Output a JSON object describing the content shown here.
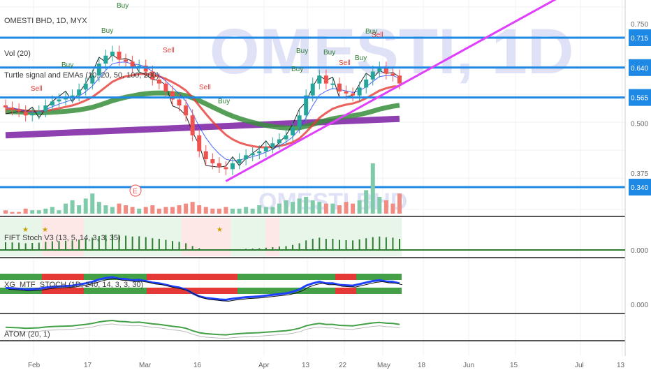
{
  "header": {
    "symbol_line": "OMESTI BHD, 1D, MYX",
    "volume_label": "Vol (20)",
    "indicator_label": "Turtle signal and EMAs (10, 20, 50, 100, 200)"
  },
  "watermark": {
    "main": "OMESTI, 1D",
    "volume": "OMESTI BHD"
  },
  "panels": {
    "stoch_label": "FIFT Stoch V3 (13, 5, 14, 3, 3, 35)",
    "mtf_label": "XG_MTF_STOCH (1D, 240, 14, 3, 3, 30)",
    "atom_label": "ATOM (20, 1)",
    "stoch_zero": "0.000",
    "mtf_zero": "0.000"
  },
  "price_axis": {
    "ticks": [
      "0.750",
      "0.500",
      "0.375"
    ],
    "levels": [
      {
        "label": "0.715",
        "value": 0.715
      },
      {
        "label": "0.640",
        "value": 0.64
      },
      {
        "label": "0.565",
        "value": 0.565
      },
      {
        "label": "0.340",
        "value": 0.34
      }
    ]
  },
  "time_axis": {
    "labels": [
      "Feb",
      "17",
      "Mar",
      "16",
      "Apr",
      "13",
      "22",
      "May",
      "18",
      "Jun",
      "15",
      "Jul",
      "13"
    ]
  },
  "signals": [
    {
      "text": "Buy",
      "kind": "buy"
    },
    {
      "text": "Sell",
      "kind": "sell"
    },
    {
      "text": "Buy",
      "kind": "buy"
    },
    {
      "text": "Buy",
      "kind": "buy"
    },
    {
      "text": "Sell",
      "kind": "sell"
    },
    {
      "text": "Sell",
      "kind": "sell"
    },
    {
      "text": "Sell",
      "kind": "sell"
    },
    {
      "text": "Buy",
      "kind": "buy"
    },
    {
      "text": "Buy",
      "kind": "buy"
    },
    {
      "text": "Buy",
      "kind": "buy"
    },
    {
      "text": "Buy",
      "kind": "buy"
    },
    {
      "text": "Sell",
      "kind": "sell"
    },
    {
      "text": "Buy",
      "kind": "buy"
    },
    {
      "text": "Buy",
      "kind": "buy"
    }
  ],
  "earnings_marker": "E",
  "colors": {
    "up": "#26a69a",
    "down": "#ef5350",
    "level_line": "#1e88e5",
    "trend_line": "#e040fb",
    "ema_green": "#388e3c",
    "ema_purple": "#7b1fa2",
    "ema_red": "#e53935",
    "ema_blue": "#1e40ff"
  },
  "chart_data": {
    "type": "candlestick",
    "title": "OMESTI BHD, 1D, MYX",
    "ylim": [
      0.3,
      0.78
    ],
    "closes": [
      0.54,
      0.535,
      0.53,
      0.52,
      0.525,
      0.53,
      0.545,
      0.555,
      0.56,
      0.565,
      0.57,
      0.585,
      0.6,
      0.62,
      0.65,
      0.67,
      0.68,
      0.66,
      0.655,
      0.64,
      0.645,
      0.63,
      0.61,
      0.6,
      0.58,
      0.56,
      0.545,
      0.52,
      0.47,
      0.43,
      0.41,
      0.4,
      0.39,
      0.385,
      0.4,
      0.41,
      0.42,
      0.425,
      0.43,
      0.44,
      0.45,
      0.46,
      0.47,
      0.49,
      0.52,
      0.57,
      0.6,
      0.62,
      0.6,
      0.6,
      0.58,
      0.575,
      0.57,
      0.59,
      0.61,
      0.63,
      0.64,
      0.625,
      0.62,
      0.6
    ],
    "opens": [
      0.545,
      0.54,
      0.535,
      0.53,
      0.52,
      0.525,
      0.53,
      0.545,
      0.555,
      0.56,
      0.565,
      0.57,
      0.585,
      0.6,
      0.62,
      0.65,
      0.67,
      0.68,
      0.66,
      0.655,
      0.64,
      0.645,
      0.63,
      0.61,
      0.6,
      0.58,
      0.56,
      0.545,
      0.52,
      0.47,
      0.43,
      0.41,
      0.4,
      0.39,
      0.385,
      0.4,
      0.41,
      0.42,
      0.425,
      0.43,
      0.44,
      0.45,
      0.46,
      0.47,
      0.49,
      0.52,
      0.57,
      0.6,
      0.62,
      0.6,
      0.6,
      0.58,
      0.575,
      0.57,
      0.59,
      0.61,
      0.63,
      0.64,
      0.625,
      0.62
    ],
    "volumes": [
      2,
      1,
      1,
      3,
      2,
      2,
      3,
      4,
      2,
      6,
      8,
      5,
      9,
      12,
      7,
      5,
      4,
      6,
      5,
      4,
      3,
      4,
      5,
      3,
      4,
      4,
      5,
      6,
      7,
      5,
      4,
      3,
      3,
      4,
      3,
      3,
      4,
      3,
      5,
      4,
      4,
      6,
      8,
      7,
      9,
      10,
      8,
      7,
      6,
      6,
      5,
      7,
      6,
      8,
      14,
      30,
      10,
      8,
      6,
      12
    ],
    "levels": [
      0.715,
      0.64,
      0.565,
      0.34
    ],
    "trendline": {
      "from": [
        33,
        0.355
      ],
      "to": [
        70,
        0.775
      ]
    }
  }
}
